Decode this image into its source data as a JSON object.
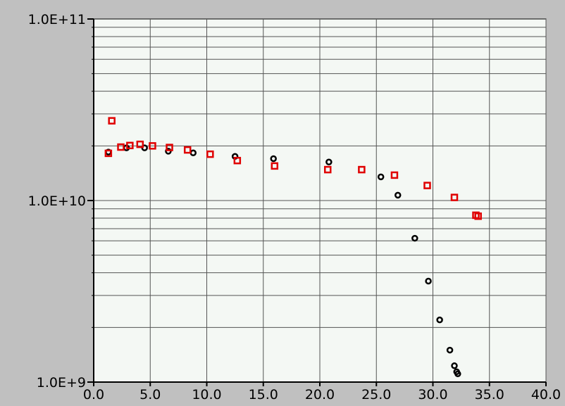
{
  "chart_data": {
    "type": "scatter",
    "title": "",
    "xlabel": "",
    "ylabel": "",
    "xlim": [
      0,
      40
    ],
    "ylim": [
      1000000000,
      100000000000
    ],
    "yscale": "log",
    "grid": true,
    "x_ticks": [
      {
        "value": 0,
        "label": "0.0"
      },
      {
        "value": 5,
        "label": "5.0"
      },
      {
        "value": 10,
        "label": "10.0"
      },
      {
        "value": 15,
        "label": "15.0"
      },
      {
        "value": 20,
        "label": "20.0"
      },
      {
        "value": 25,
        "label": "25.0"
      },
      {
        "value": 30,
        "label": "30.0"
      },
      {
        "value": 35,
        "label": "35.0"
      },
      {
        "value": 40,
        "label": "40.0"
      }
    ],
    "y_ticks": [
      {
        "value": 1000000000,
        "label": "1.0E+9"
      },
      {
        "value": 10000000000,
        "label": "1.0E+10"
      },
      {
        "value": 100000000000,
        "label": "1.0E+11"
      }
    ],
    "series": [
      {
        "marker": "circle",
        "color": "#000000",
        "points": [
          [
            1.3,
            18500000000
          ],
          [
            2.9,
            19500000000
          ],
          [
            4.5,
            19500000000
          ],
          [
            6.6,
            18700000000
          ],
          [
            8.8,
            18300000000
          ],
          [
            12.5,
            17500000000
          ],
          [
            15.9,
            17000000000
          ],
          [
            20.8,
            16300000000
          ],
          [
            25.4,
            13500000000
          ],
          [
            26.9,
            10700000000
          ],
          [
            28.4,
            6200000000
          ],
          [
            29.6,
            3600000000
          ],
          [
            30.6,
            2200000000
          ],
          [
            31.5,
            1500000000
          ],
          [
            31.9,
            1230000000
          ],
          [
            32.1,
            1140000000
          ],
          [
            32.2,
            1110000000
          ]
        ]
      },
      {
        "marker": "square",
        "color": "#e00000",
        "points": [
          [
            1.3,
            18200000000
          ],
          [
            1.6,
            27500000000
          ],
          [
            2.4,
            19700000000
          ],
          [
            3.2,
            20100000000
          ],
          [
            4.1,
            20400000000
          ],
          [
            5.2,
            20000000000
          ],
          [
            6.7,
            19600000000
          ],
          [
            8.3,
            19000000000
          ],
          [
            10.3,
            18000000000
          ],
          [
            12.7,
            16600000000
          ],
          [
            16.0,
            15500000000
          ],
          [
            20.7,
            14800000000
          ],
          [
            23.7,
            14800000000
          ],
          [
            26.6,
            13800000000
          ],
          [
            29.5,
            12100000000
          ],
          [
            31.9,
            10400000000
          ],
          [
            33.8,
            8300000000
          ],
          [
            34.0,
            8200000000
          ]
        ]
      }
    ]
  }
}
